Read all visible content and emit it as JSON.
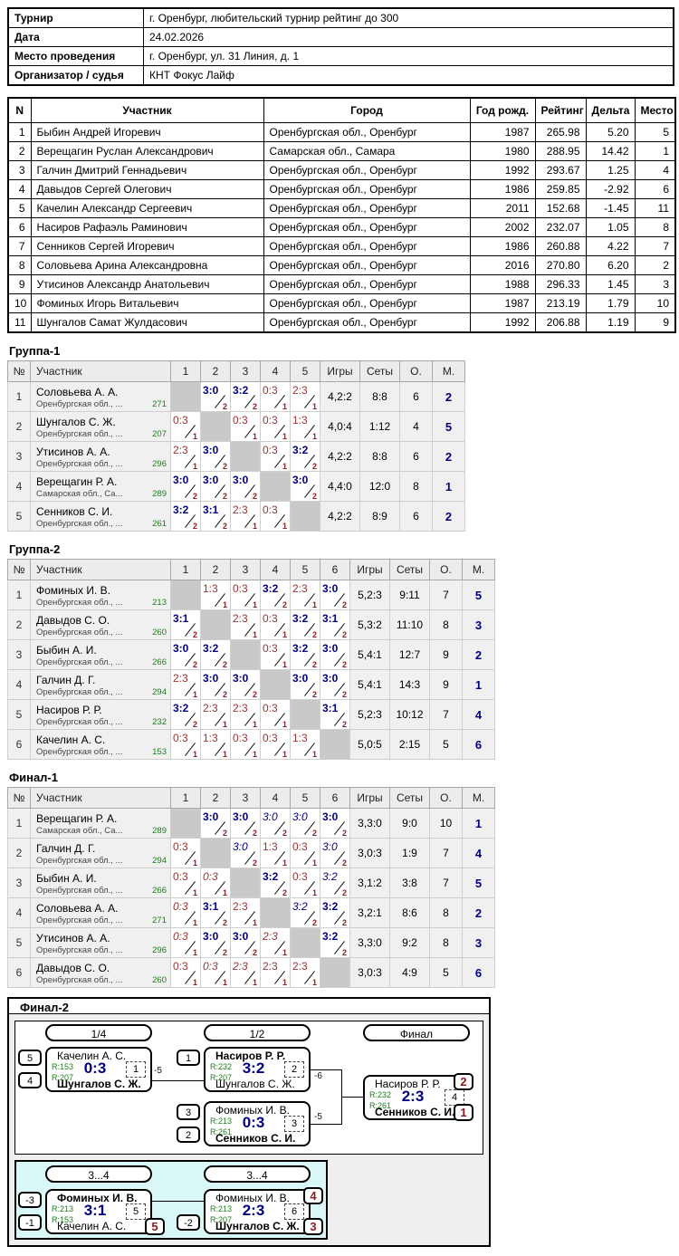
{
  "info": {
    "rows": [
      {
        "label": "Турнир",
        "value": "г. Оренбург, любительский турнир рейтинг до 300"
      },
      {
        "label": "Дата",
        "value": "24.02.2026"
      },
      {
        "label": "Место проведения",
        "value": "г. Оренбург, ул. 31 Линия, д. 1"
      },
      {
        "label": "Организатор / судья",
        "value": "КНТ Фокус Лайф"
      }
    ]
  },
  "participants": {
    "headers": [
      "N",
      "Участник",
      "Город",
      "Год рожд.",
      "Рейтинг",
      "Дельта",
      "Место"
    ],
    "rows": [
      [
        "1",
        "Быбин Андрей Игоревич",
        "Оренбургская обл., Оренбург",
        "1987",
        "265.98",
        "5.20",
        "5"
      ],
      [
        "2",
        "Верещагин Руслан Александрович",
        "Самарская обл., Самара",
        "1980",
        "288.95",
        "14.42",
        "1"
      ],
      [
        "3",
        "Галчин Дмитрий Геннадьевич",
        "Оренбургская обл., Оренбург",
        "1992",
        "293.67",
        "1.25",
        "4"
      ],
      [
        "4",
        "Давыдов Сергей Олегович",
        "Оренбургская обл., Оренбург",
        "1986",
        "259.85",
        "-2.92",
        "6"
      ],
      [
        "5",
        "Качелин Александр Сергеевич",
        "Оренбургская обл., Оренбург",
        "2011",
        "152.68",
        "-1.45",
        "11"
      ],
      [
        "6",
        "Насиров Рафаэль Раминович",
        "Оренбургская обл., Оренбург",
        "2002",
        "232.07",
        "1.05",
        "8"
      ],
      [
        "7",
        "Сенников Сергей Игоревич",
        "Оренбургская обл., Оренбург",
        "1986",
        "260.88",
        "4.22",
        "7"
      ],
      [
        "8",
        "Соловьева Арина Александровна",
        "Оренбургская обл., Оренбург",
        "2016",
        "270.80",
        "6.20",
        "2"
      ],
      [
        "9",
        "Утисинов Александр Анатольевич",
        "Оренбургская обл., Оренбург",
        "1988",
        "296.33",
        "1.45",
        "3"
      ],
      [
        "10",
        "Фоминых Игорь Витальевич",
        "Оренбургская обл., Оренбург",
        "1987",
        "213.19",
        "1.79",
        "10"
      ],
      [
        "11",
        "Шунгалов Самат Жулдасович",
        "Оренбургская обл., Оренбург",
        "1992",
        "206.88",
        "1.19",
        "9"
      ]
    ]
  },
  "group_table_headers": {
    "num": "№",
    "name": "Участник",
    "games": "Игры",
    "sets": "Сеты",
    "points": "О.",
    "place": "М."
  },
  "groups": [
    {
      "title": "Группа-1",
      "rows": [
        {
          "num": "1",
          "name": "Соловьева А. А.",
          "region": "Оренбургская обл., ...",
          "rating": "271",
          "cells": [
            null,
            [
              "3:0",
              "2",
              "w"
            ],
            [
              "3:2",
              "2",
              "w"
            ],
            [
              "0:3",
              "1",
              "l"
            ],
            [
              "2:3",
              "1",
              "l"
            ]
          ],
          "games": "4,2:2",
          "sets": "8:8",
          "points": "6",
          "place": "2"
        },
        {
          "num": "2",
          "name": "Шунгалов С. Ж.",
          "region": "Оренбургская обл., ...",
          "rating": "207",
          "cells": [
            [
              "0:3",
              "1",
              "l"
            ],
            null,
            [
              "0:3",
              "1",
              "l"
            ],
            [
              "0:3",
              "1",
              "l"
            ],
            [
              "1:3",
              "1",
              "l"
            ]
          ],
          "games": "4,0:4",
          "sets": "1:12",
          "points": "4",
          "place": "5"
        },
        {
          "num": "3",
          "name": "Утисинов А. А.",
          "region": "Оренбургская обл., ...",
          "rating": "296",
          "cells": [
            [
              "2:3",
              "1",
              "l"
            ],
            [
              "3:0",
              "2",
              "w"
            ],
            null,
            [
              "0:3",
              "1",
              "l"
            ],
            [
              "3:2",
              "2",
              "w"
            ]
          ],
          "games": "4,2:2",
          "sets": "8:8",
          "points": "6",
          "place": "2"
        },
        {
          "num": "4",
          "name": "Верещагин Р. А.",
          "region": "Самарская обл., Са...",
          "rating": "289",
          "cells": [
            [
              "3:0",
              "2",
              "w"
            ],
            [
              "3:0",
              "2",
              "w"
            ],
            [
              "3:0",
              "2",
              "w"
            ],
            null,
            [
              "3:0",
              "2",
              "w"
            ]
          ],
          "games": "4,4:0",
          "sets": "12:0",
          "points": "8",
          "place": "1"
        },
        {
          "num": "5",
          "name": "Сенников С. И.",
          "region": "Оренбургская обл., ...",
          "rating": "261",
          "cells": [
            [
              "3:2",
              "2",
              "w"
            ],
            [
              "3:1",
              "2",
              "w"
            ],
            [
              "2:3",
              "1",
              "l"
            ],
            [
              "0:3",
              "1",
              "l"
            ],
            null
          ],
          "games": "4,2:2",
          "sets": "8:9",
          "points": "6",
          "place": "2"
        }
      ]
    },
    {
      "title": "Группа-2",
      "rows": [
        {
          "num": "1",
          "name": "Фоминых И. В.",
          "region": "Оренбургская обл., ...",
          "rating": "213",
          "cells": [
            null,
            [
              "1:3",
              "1",
              "l"
            ],
            [
              "0:3",
              "1",
              "l"
            ],
            [
              "3:2",
              "2",
              "w"
            ],
            [
              "2:3",
              "1",
              "l"
            ],
            [
              "3:0",
              "2",
              "w"
            ]
          ],
          "games": "5,2:3",
          "sets": "9:11",
          "points": "7",
          "place": "5"
        },
        {
          "num": "2",
          "name": "Давыдов С. О.",
          "region": "Оренбургская обл., ...",
          "rating": "260",
          "cells": [
            [
              "3:1",
              "2",
              "w"
            ],
            null,
            [
              "2:3",
              "1",
              "l"
            ],
            [
              "0:3",
              "1",
              "l"
            ],
            [
              "3:2",
              "2",
              "w"
            ],
            [
              "3:1",
              "2",
              "w"
            ]
          ],
          "games": "5,3:2",
          "sets": "11:10",
          "points": "8",
          "place": "3"
        },
        {
          "num": "3",
          "name": "Быбин А. И.",
          "region": "Оренбургская обл., ...",
          "rating": "266",
          "cells": [
            [
              "3:0",
              "2",
              "w"
            ],
            [
              "3:2",
              "2",
              "w"
            ],
            null,
            [
              "0:3",
              "1",
              "l"
            ],
            [
              "3:2",
              "2",
              "w"
            ],
            [
              "3:0",
              "2",
              "w"
            ]
          ],
          "games": "5,4:1",
          "sets": "12:7",
          "points": "9",
          "place": "2"
        },
        {
          "num": "4",
          "name": "Галчин Д. Г.",
          "region": "Оренбургская обл., ...",
          "rating": "294",
          "cells": [
            [
              "2:3",
              "1",
              "l"
            ],
            [
              "3:0",
              "2",
              "w"
            ],
            [
              "3:0",
              "2",
              "w"
            ],
            null,
            [
              "3:0",
              "2",
              "w"
            ],
            [
              "3:0",
              "2",
              "w"
            ]
          ],
          "games": "5,4:1",
          "sets": "14:3",
          "points": "9",
          "place": "1"
        },
        {
          "num": "5",
          "name": "Насиров Р. Р.",
          "region": "Оренбургская обл., ...",
          "rating": "232",
          "cells": [
            [
              "3:2",
              "2",
              "w"
            ],
            [
              "2:3",
              "1",
              "l"
            ],
            [
              "2:3",
              "1",
              "l"
            ],
            [
              "0:3",
              "1",
              "l"
            ],
            null,
            [
              "3:1",
              "2",
              "w"
            ]
          ],
          "games": "5,2:3",
          "sets": "10:12",
          "points": "7",
          "place": "4"
        },
        {
          "num": "6",
          "name": "Качелин А. С.",
          "region": "Оренбургская обл., ...",
          "rating": "153",
          "cells": [
            [
              "0:3",
              "1",
              "l"
            ],
            [
              "1:3",
              "1",
              "l"
            ],
            [
              "0:3",
              "1",
              "l"
            ],
            [
              "0:3",
              "1",
              "l"
            ],
            [
              "1:3",
              "1",
              "l"
            ],
            null
          ],
          "games": "5,0:5",
          "sets": "2:15",
          "points": "5",
          "place": "6"
        }
      ]
    },
    {
      "title": "Финал-1",
      "rows": [
        {
          "num": "1",
          "name": "Верещагин Р. А.",
          "region": "Самарская обл., Са...",
          "rating": "289",
          "cells": [
            null,
            [
              "3:0",
              "2",
              "w"
            ],
            [
              "3:0",
              "2",
              "w"
            ],
            [
              "3:0",
              "2",
              "wi"
            ],
            [
              "3:0",
              "2",
              "wi"
            ],
            [
              "3:0",
              "2",
              "w"
            ]
          ],
          "games": "3,3:0",
          "sets": "9:0",
          "points": "10",
          "place": "1"
        },
        {
          "num": "2",
          "name": "Галчин Д. Г.",
          "region": "Оренбургская обл., ...",
          "rating": "294",
          "cells": [
            [
              "0:3",
              "1",
              "l"
            ],
            null,
            [
              "3:0",
              "2",
              "wi"
            ],
            [
              "1:3",
              "1",
              "l"
            ],
            [
              "0:3",
              "1",
              "l"
            ],
            [
              "3:0",
              "2",
              "wi"
            ]
          ],
          "games": "3,0:3",
          "sets": "1:9",
          "points": "7",
          "place": "4"
        },
        {
          "num": "3",
          "name": "Быбин А. И.",
          "region": "Оренбургская обл., ...",
          "rating": "266",
          "cells": [
            [
              "0:3",
              "1",
              "l"
            ],
            [
              "0:3",
              "1",
              "li"
            ],
            null,
            [
              "3:2",
              "2",
              "w"
            ],
            [
              "0:3",
              "1",
              "l"
            ],
            [
              "3:2",
              "2",
              "wi"
            ]
          ],
          "games": "3,1:2",
          "sets": "3:8",
          "points": "7",
          "place": "5"
        },
        {
          "num": "4",
          "name": "Соловьева А. А.",
          "region": "Оренбургская обл., ...",
          "rating": "271",
          "cells": [
            [
              "0:3",
              "1",
              "li"
            ],
            [
              "3:1",
              "2",
              "w"
            ],
            [
              "2:3",
              "1",
              "l"
            ],
            null,
            [
              "3:2",
              "2",
              "wi"
            ],
            [
              "3:2",
              "2",
              "w"
            ]
          ],
          "games": "3,2:1",
          "sets": "8:6",
          "points": "8",
          "place": "2"
        },
        {
          "num": "5",
          "name": "Утисинов А. А.",
          "region": "Оренбургская обл., ...",
          "rating": "296",
          "cells": [
            [
              "0:3",
              "1",
              "li"
            ],
            [
              "3:0",
              "2",
              "w"
            ],
            [
              "3:0",
              "2",
              "w"
            ],
            [
              "2:3",
              "1",
              "li"
            ],
            null,
            [
              "3:2",
              "2",
              "w"
            ]
          ],
          "games": "3,3:0",
          "sets": "9:2",
          "points": "8",
          "place": "3"
        },
        {
          "num": "6",
          "name": "Давыдов С. О.",
          "region": "Оренбургская обл., ...",
          "rating": "260",
          "cells": [
            [
              "0:3",
              "1",
              "l"
            ],
            [
              "0:3",
              "1",
              "li"
            ],
            [
              "2:3",
              "1",
              "li"
            ],
            [
              "2:3",
              "1",
              "l"
            ],
            [
              "2:3",
              "1",
              "l"
            ],
            null
          ],
          "games": "3,0:3",
          "sets": "4:9",
          "points": "5",
          "place": "6"
        }
      ]
    }
  ],
  "bracket": {
    "title": "Финал-2",
    "round_labels": [
      "1/4",
      "1/2",
      "Финал"
    ],
    "playoff_labels": [
      "3...4",
      "3...4"
    ],
    "matches": [
      {
        "id": "m1",
        "num": "1",
        "score": "0:3",
        "drop_label": "-5",
        "seed_top": "5",
        "seed_bottom": "4",
        "top": {
          "name": "Качелин А. С.",
          "rating": "R:153",
          "winner": false
        },
        "bottom": {
          "name": "Шунгалов С. Ж.",
          "rating": "R:207",
          "winner": true
        }
      },
      {
        "id": "m2",
        "num": "2",
        "score": "3:2",
        "drop_label": "-6",
        "seed_top": "1",
        "top": {
          "name": "Насиров Р. Р.",
          "rating": "R:232",
          "winner": true
        },
        "bottom": {
          "name": "Шунгалов С. Ж.",
          "rating": "R:207",
          "winner": false
        }
      },
      {
        "id": "m3",
        "num": "3",
        "score": "0:3",
        "drop_label": "-5",
        "seed_top": "3",
        "seed_bottom": "2",
        "top": {
          "name": "Фоминых И. В.",
          "rating": "R:213",
          "winner": false
        },
        "bottom": {
          "name": "Сенников С. И.",
          "rating": "R:261",
          "winner": true
        }
      },
      {
        "id": "m4",
        "num": "4",
        "score": "2:3",
        "top": {
          "name": "Насиров Р. Р.",
          "rating": "R:232",
          "winner": false,
          "badge": "2"
        },
        "bottom": {
          "name": "Сенников С. И.",
          "rating": "R:261",
          "winner": true,
          "badge": "1"
        }
      },
      {
        "id": "m5",
        "num": "5",
        "score": "3:1",
        "seed_top": "-3",
        "seed_bottom": "-1",
        "top": {
          "name": "Фоминых И. В.",
          "rating": "R:213",
          "winner": true
        },
        "bottom": {
          "name": "Качелин А. С.",
          "rating": "R:153",
          "winner": false,
          "badge": "5"
        }
      },
      {
        "id": "m6",
        "num": "6",
        "score": "2:3",
        "seed_bottom": "-2",
        "top": {
          "name": "Фоминых И. В.",
          "rating": "R:213",
          "winner": false,
          "badge": "4"
        },
        "bottom": {
          "name": "Шунгалов С. Ж.",
          "rating": "R:207",
          "winner": true,
          "badge": "3"
        }
      }
    ]
  }
}
